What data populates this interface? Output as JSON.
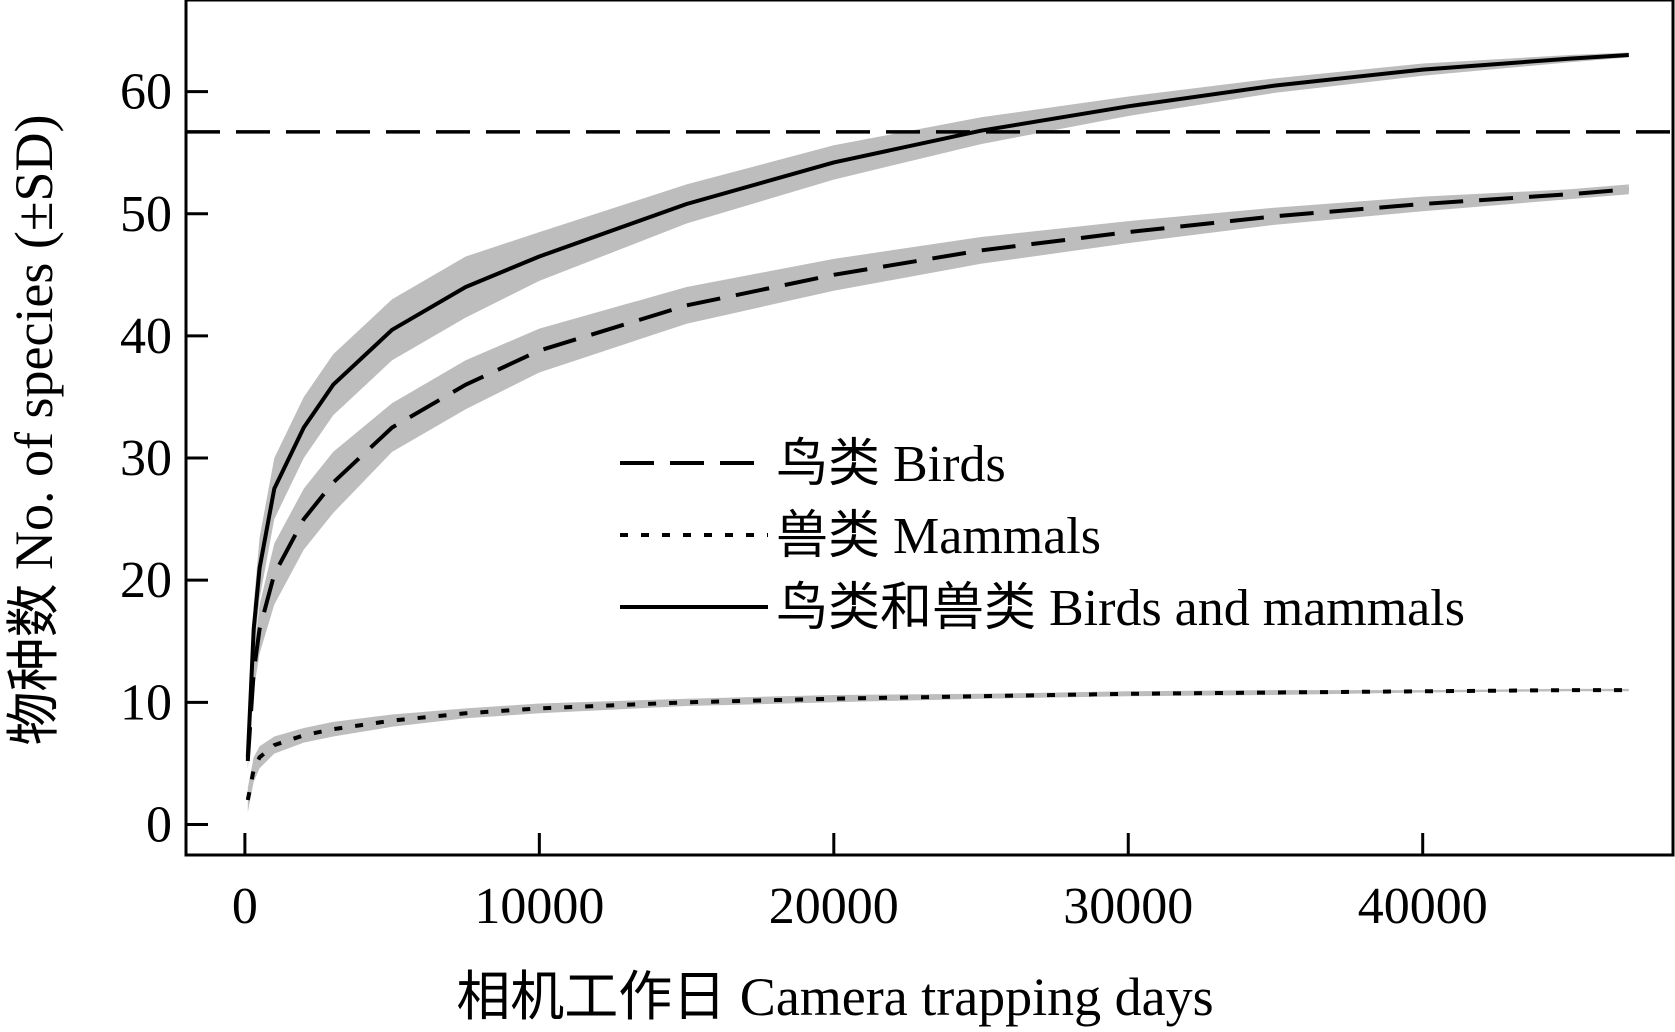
{
  "chart_data": {
    "type": "line",
    "title": "",
    "xlabel": "相机工作日 Camera trapping days",
    "ylabel": "物种数 No. of species (±SD)",
    "xlim": [
      -2000,
      48500
    ],
    "ylim": [
      -2.5,
      67.5
    ],
    "xticks": [
      0,
      10000,
      20000,
      30000,
      40000
    ],
    "xtick_labels": [
      "0",
      "10000",
      "20000",
      "30000",
      "40000"
    ],
    "yticks": [
      0,
      10,
      20,
      30,
      40,
      50,
      60
    ],
    "ytick_labels": [
      "0",
      "10",
      "20",
      "30",
      "40",
      "50",
      "60"
    ],
    "grid": false,
    "legend_position": "center",
    "reference_line": {
      "y": 56.7,
      "style": "dashed"
    },
    "series": [
      {
        "name": "鸟类 Birds",
        "style": "dashed",
        "color": "#000000",
        "band_color": "#bdbdbd",
        "x": [
          100,
          300,
          500,
          1000,
          2000,
          3000,
          5000,
          7500,
          10000,
          15000,
          20000,
          25000,
          30000,
          35000,
          40000,
          45000,
          47000
        ],
        "y": [
          5.2,
          12.5,
          16,
          20.5,
          25,
          28,
          32.5,
          36,
          38.8,
          42.5,
          45,
          47,
          48.5,
          49.8,
          50.8,
          51.6,
          52
        ],
        "sd_low": [
          4.5,
          11,
          14,
          18,
          22.5,
          25.5,
          30.5,
          34,
          37,
          41,
          43.7,
          45.9,
          47.6,
          49.1,
          50.2,
          51.2,
          51.6
        ],
        "sd_high": [
          6,
          14,
          18,
          23,
          27.5,
          30.5,
          34.5,
          38,
          40.6,
          44,
          46.3,
          48.1,
          49.4,
          50.5,
          51.4,
          52,
          52.4
        ]
      },
      {
        "name": "兽类 Mammals",
        "style": "dotted",
        "color": "#000000",
        "band_color": "#bdbdbd",
        "x": [
          100,
          300,
          500,
          1000,
          2000,
          3000,
          5000,
          7500,
          10000,
          15000,
          20000,
          25000,
          30000,
          35000,
          40000,
          45000,
          47000
        ],
        "y": [
          2,
          4.5,
          5.5,
          6.5,
          7.3,
          7.8,
          8.5,
          9.1,
          9.5,
          10,
          10.3,
          10.5,
          10.7,
          10.8,
          10.9,
          11,
          11
        ],
        "sd_low": [
          1,
          3.5,
          4.6,
          5.8,
          6.7,
          7.2,
          8,
          8.7,
          9.1,
          9.7,
          10,
          10.3,
          10.5,
          10.6,
          10.8,
          10.9,
          10.9
        ],
        "sd_high": [
          3,
          5.5,
          6.4,
          7.2,
          7.9,
          8.4,
          9,
          9.5,
          9.9,
          10.3,
          10.6,
          10.7,
          10.9,
          11,
          11,
          11.1,
          11.1
        ]
      },
      {
        "name": "鸟类和兽类 Birds and mammals",
        "style": "solid",
        "color": "#000000",
        "band_color": "#bdbdbd",
        "x": [
          100,
          300,
          500,
          1000,
          2000,
          3000,
          5000,
          7500,
          10000,
          15000,
          20000,
          25000,
          30000,
          35000,
          40000,
          45000,
          47000
        ],
        "y": [
          5.5,
          16,
          21,
          27.5,
          32.5,
          36,
          40.5,
          44,
          46.5,
          50.8,
          54.2,
          56.8,
          58.8,
          60.5,
          61.8,
          62.7,
          63
        ],
        "sd_low": [
          4.5,
          14,
          18.5,
          25,
          30,
          33.5,
          38,
          41.5,
          44.5,
          49.2,
          52.8,
          55.7,
          58,
          59.9,
          61.3,
          62.4,
          62.8
        ],
        "sd_high": [
          6.5,
          18,
          23.5,
          30,
          35,
          38.5,
          43,
          46.5,
          48.5,
          52.4,
          55.6,
          57.9,
          59.6,
          61.1,
          62.3,
          63,
          63.2
        ]
      }
    ]
  }
}
